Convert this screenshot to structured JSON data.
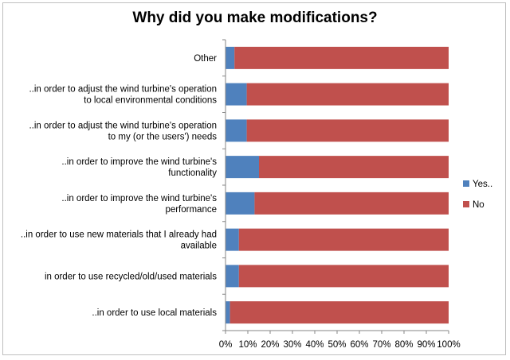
{
  "chart_data": {
    "type": "bar",
    "orientation": "horizontal",
    "stacked": "percent",
    "title": "Why did you make modifications?",
    "categories": [
      [
        "Other"
      ],
      [
        "..in order to adjust the wind turbine's operation",
        "to local environmental conditions"
      ],
      [
        "..in order to adjust the wind turbine's operation",
        "to my (or the users') needs"
      ],
      [
        "..in order to improve the wind turbine's",
        "functionality"
      ],
      [
        "..in order to improve the wind turbine's",
        "performance"
      ],
      [
        "..in order to use new materials that I already had",
        "available"
      ],
      [
        "in order to use recycled/old/used materials"
      ],
      [
        "..in order to use local materials"
      ]
    ],
    "series": [
      {
        "name": "Yes..",
        "color": "#4f81bd",
        "values": [
          4,
          9.5,
          9.5,
          15,
          13,
          6,
          6,
          2
        ]
      },
      {
        "name": "No",
        "color": "#c0504d",
        "values": [
          96,
          90.5,
          90.5,
          85,
          87,
          94,
          94,
          98
        ]
      }
    ],
    "xlim": [
      0,
      100
    ],
    "xticks": [
      "0%",
      "10%",
      "20%",
      "30%",
      "40%",
      "50%",
      "60%",
      "70%",
      "80%",
      "90%",
      "100%"
    ],
    "grid": false,
    "legend": "right"
  }
}
